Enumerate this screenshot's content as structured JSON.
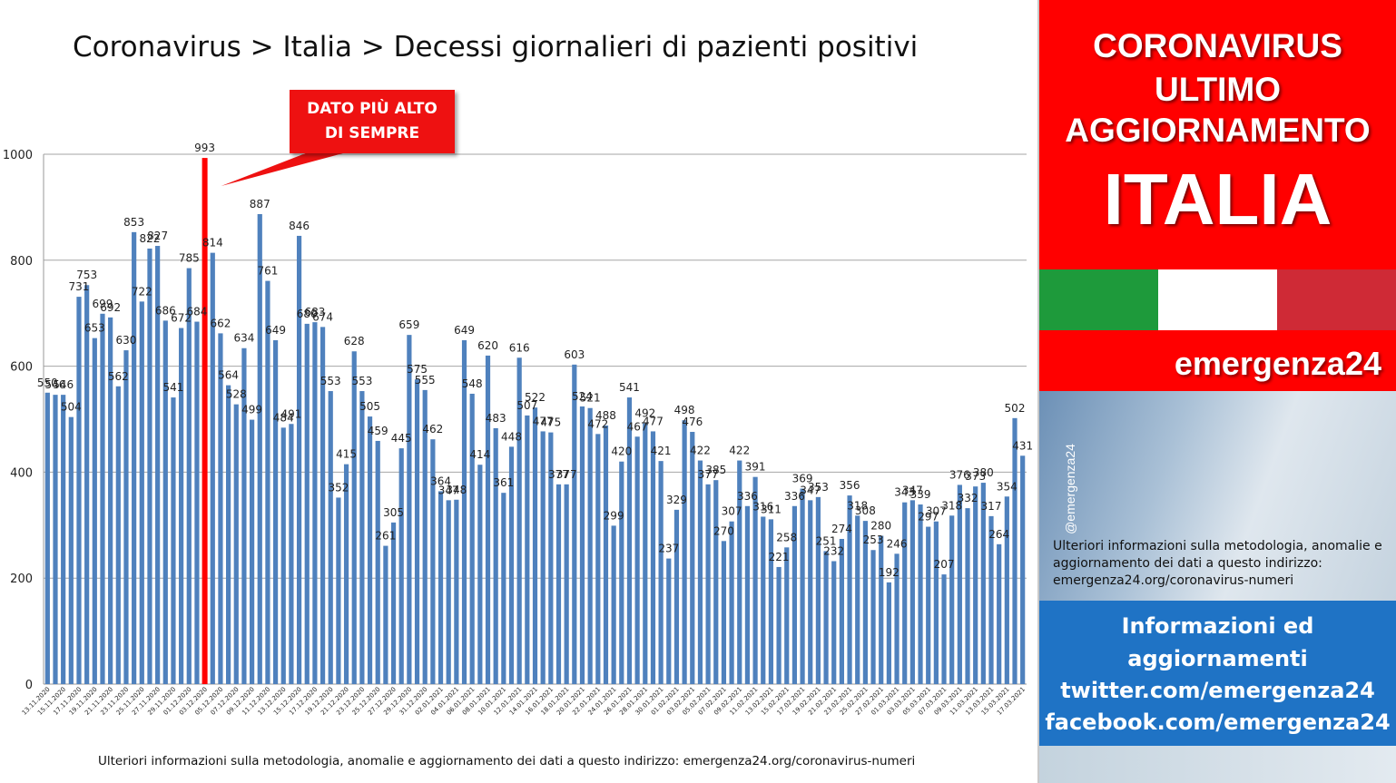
{
  "title": "Coronavirus > Italia > Decessi giornalieri di pazienti positivi",
  "callout": {
    "line1": "DATO PIÙ ALTO",
    "line2": "DI SEMPRE"
  },
  "footer_note": "Ulteriori informazioni sulla metodologia, anomalie e aggiornamento dei dati a questo indirizzo: emergenza24.org/coronavirus-numeri",
  "panel": {
    "headline_lines": [
      "CORONAVIRUS",
      "ULTIMO",
      "AGGIORNAMENTO"
    ],
    "country": "ITALIA",
    "brand": "emergenza24",
    "handle": "@emergenza24",
    "info": "Ulteriori informazioni sulla metodologia, anomalie e aggiornamento dei dati a questo indirizzo: emergenza24.org/coronavirus-numeri",
    "contact_lines": [
      "Informazioni ed",
      "aggiornamenti",
      "twitter.com/emergenza24",
      "facebook.com/emergenza24"
    ],
    "colors": {
      "red": "#ff0000",
      "blue": "#1f73c5",
      "flag_green": "#1e9a3b",
      "flag_white": "#ffffff",
      "flag_red": "#cf2a36"
    }
  },
  "chart_data": {
    "type": "bar",
    "title": "Coronavirus > Italia > Decessi giornalieri di pazienti positivi",
    "xlabel": "",
    "ylabel": "",
    "ylim": [
      0,
      1000
    ],
    "yticks": [
      0,
      200,
      400,
      600,
      800,
      1000
    ],
    "grid": true,
    "bar_color": "#4f81bd",
    "highlight_color": "#ff0000",
    "highlight_value": 993,
    "start_date": "13.11.2020",
    "x_tick_labels": [
      "13.11.2020",
      "15.11.2020",
      "17.11.2020",
      "19.11.2020",
      "21.11.2020",
      "23.11.2020",
      "25.11.2020",
      "27.11.2020",
      "29.11.2020",
      "01.12.2020",
      "03.12.2020",
      "05.12.2020",
      "07.12.2020",
      "09.12.2020",
      "11.12.2020",
      "13.12.2020",
      "15.12.2020",
      "17.12.2020",
      "19.12.2020",
      "21.12.2020",
      "23.12.2020",
      "25.12.2020",
      "27.12.2020",
      "29.12.2020",
      "31.12.2020",
      "02.01.2021",
      "04.01.2021",
      "06.01.2021",
      "08.01.2021",
      "10.01.2021",
      "12.01.2021",
      "14.01.2021",
      "16.01.2021",
      "18.01.2021",
      "20.01.2021",
      "22.01.2021",
      "24.01.2021",
      "26.01.2021",
      "28.01.2021",
      "30.01.2021",
      "01.02.2021",
      "03.02.2021",
      "05.02.2021",
      "07.02.2021",
      "09.02.2021",
      "11.02.2021",
      "13.02.2021",
      "15.02.2021",
      "17.02.2021",
      "19.02.2021",
      "21.02.2021",
      "23.02.2021",
      "25.02.2021",
      "27.02.2021",
      "01.03.2021",
      "03.03.2021",
      "05.03.2021",
      "07.03.2021",
      "09.03.2021",
      "11.03.2021",
      "13.03.2021",
      "15.03.2021",
      "17.03.2021"
    ],
    "values": [
      550,
      546,
      546,
      504,
      731,
      753,
      653,
      699,
      692,
      562,
      630,
      853,
      722,
      822,
      827,
      686,
      541,
      672,
      785,
      684,
      993,
      814,
      662,
      564,
      528,
      634,
      499,
      887,
      761,
      649,
      484,
      491,
      846,
      680,
      683,
      674,
      553,
      352,
      415,
      628,
      553,
      505,
      459,
      261,
      305,
      445,
      659,
      575,
      555,
      462,
      364,
      347,
      348,
      649,
      548,
      414,
      620,
      483,
      361,
      448,
      616,
      507,
      522,
      477,
      475,
      377,
      377,
      603,
      524,
      521,
      472,
      488,
      299,
      420,
      541,
      467,
      492,
      477,
      421,
      237,
      329,
      498,
      476,
      422,
      377,
      385,
      270,
      307,
      422,
      336,
      391,
      316,
      311,
      221,
      258,
      336,
      369,
      347,
      353,
      251,
      232,
      274,
      356,
      318,
      308,
      253,
      280,
      192,
      246,
      343,
      347,
      339,
      297,
      307,
      207,
      318,
      376,
      332,
      373,
      380,
      317,
      264,
      354,
      502,
      431
    ]
  }
}
